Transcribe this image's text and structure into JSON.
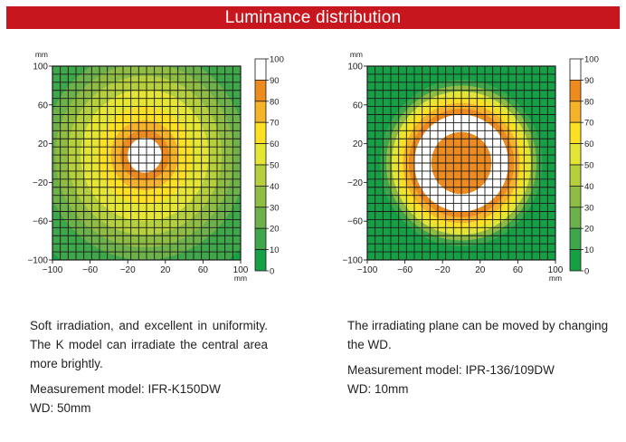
{
  "header": {
    "title": "Luminance distribution"
  },
  "colors": {
    "band_100": "#ffffff",
    "band_90": "#ed8b1e",
    "band_80": "#f6b32a",
    "band_70": "#fde021",
    "band_60": "#e4e633",
    "band_50": "#b5cf3d",
    "band_40": "#8fbd43",
    "band_30": "#6db14b",
    "band_20": "#3ea749",
    "band_10": "#16a046",
    "band_0": "#16a046",
    "header_bg": "#c8161e"
  },
  "chart_data": [
    {
      "type": "heatmap",
      "title": "",
      "xlabel": "mm",
      "ylabel": "mm",
      "xlim": [
        -100,
        100
      ],
      "ylim": [
        -100,
        100
      ],
      "x_ticks": [
        "−100",
        "−60",
        "−20",
        "20",
        "60",
        "100"
      ],
      "y_ticks": [
        "100",
        "60",
        "20",
        "−20",
        "−60",
        "−100"
      ],
      "colorbar_ticks": [
        "100",
        "90",
        "80",
        "70",
        "60",
        "50",
        "40",
        "30",
        "20",
        "10",
        "0"
      ],
      "grid": true,
      "center": [
        -2,
        8
      ],
      "radial_profile": [
        {
          "r": 0,
          "value": 100
        },
        {
          "r": 17,
          "value": 100
        },
        {
          "r": 18,
          "value": 90
        },
        {
          "r": 26,
          "value": 80
        },
        {
          "r": 36,
          "value": 70
        },
        {
          "r": 50,
          "value": 60
        },
        {
          "r": 68,
          "value": 50
        },
        {
          "r": 82,
          "value": 40
        },
        {
          "r": 95,
          "value": 30
        },
        {
          "r": 108,
          "value": 20
        },
        {
          "r": 140,
          "value": 20
        }
      ]
    },
    {
      "type": "heatmap",
      "title": "",
      "xlabel": "mm",
      "ylabel": "mm",
      "xlim": [
        -100,
        100
      ],
      "ylim": [
        -100,
        100
      ],
      "x_ticks": [
        "−100",
        "−60",
        "−20",
        "20",
        "60",
        "100"
      ],
      "y_ticks": [
        "100",
        "60",
        "20",
        "−20",
        "−60",
        "−100"
      ],
      "colorbar_ticks": [
        "100",
        "90",
        "80",
        "70",
        "60",
        "50",
        "40",
        "30",
        "20",
        "10",
        "0"
      ],
      "grid": true,
      "center": [
        0,
        0
      ],
      "radial_profile": [
        {
          "r": 0,
          "value": 90
        },
        {
          "r": 30,
          "value": 90
        },
        {
          "r": 32,
          "value": 100
        },
        {
          "r": 48,
          "value": 100
        },
        {
          "r": 50,
          "value": 90
        },
        {
          "r": 56,
          "value": 80
        },
        {
          "r": 62,
          "value": 70
        },
        {
          "r": 68,
          "value": 60
        },
        {
          "r": 74,
          "value": 40
        },
        {
          "r": 80,
          "value": 20
        },
        {
          "r": 86,
          "value": 10
        },
        {
          "r": 140,
          "value": 10
        }
      ]
    }
  ],
  "descriptions": [
    {
      "text": "Soft irradiation, and excellent in uniformity. The K model can irradiate the central area more brightly.",
      "model": "Measurement model: IFR-K150DW",
      "wd": "WD: 50mm"
    },
    {
      "text": "The irradiating plane can be moved by changing the WD.",
      "model": "Measurement model: IPR-136/109DW",
      "wd": "WD: 10mm"
    }
  ]
}
